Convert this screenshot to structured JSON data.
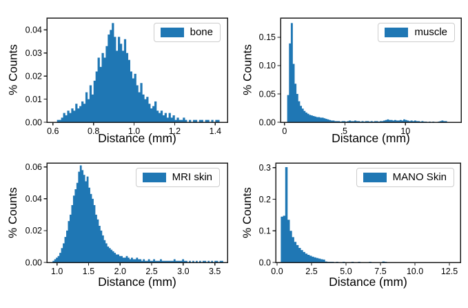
{
  "figure": {
    "background": "#ffffff",
    "bar_color": "#1f77b4",
    "spine_color": "#1a1a1a",
    "text_color": "#000000",
    "legend_border_color": "#cccccc"
  },
  "chart_data": [
    {
      "type": "bar",
      "legend": "bone",
      "xlabel": "Distance (mm)",
      "ylabel": "% Counts",
      "legend_position": "upper right",
      "grid": false,
      "xlim": [
        0.57,
        1.46
      ],
      "ylim": [
        0,
        0.0452
      ],
      "xticks": [
        0.6,
        0.8,
        1.0,
        1.2,
        1.4
      ],
      "xtick_labels": [
        "0.6",
        "0.8",
        "1.0",
        "1.2",
        "1.4"
      ],
      "yticks": [
        0,
        0.01,
        0.02,
        0.03,
        0.04
      ],
      "ytick_labels": [
        "0.00",
        "0.01",
        "0.02",
        "0.03",
        "0.04"
      ],
      "bin_start": 0.62,
      "bin_width": 0.01,
      "heights": [
        0.001,
        0.001,
        0.002,
        0.004,
        0.003,
        0.005,
        0.004,
        0.006,
        0.005,
        0.008,
        0.006,
        0.007,
        0.009,
        0.008,
        0.013,
        0.01,
        0.016,
        0.012,
        0.018,
        0.022,
        0.028,
        0.024,
        0.03,
        0.028,
        0.033,
        0.038,
        0.04,
        0.043,
        0.037,
        0.031,
        0.037,
        0.034,
        0.031,
        0.036,
        0.03,
        0.027,
        0.022,
        0.019,
        0.021,
        0.016,
        0.013,
        0.017,
        0.012,
        0.01,
        0.011,
        0.008,
        0.006,
        0.007,
        0.009,
        0.005,
        0.004,
        0.005,
        0.003,
        0.004,
        0.002,
        0.004,
        0.002,
        0.003,
        0.001,
        0.002,
        0.001,
        0.001,
        0.002,
        0.001,
        0,
        0.001,
        0,
        0.001,
        0.001,
        0,
        0.001,
        0.001,
        0,
        0.001,
        0.001,
        0,
        0.001,
        0,
        0.001,
        0.001
      ]
    },
    {
      "type": "bar",
      "legend": "muscle",
      "xlabel": "Distance (mm)",
      "ylabel": "% Counts",
      "legend_position": "upper right",
      "grid": false,
      "xlim": [
        -0.33,
        14.6
      ],
      "ylim": [
        0,
        0.184
      ],
      "xticks": [
        0,
        5,
        10
      ],
      "xtick_labels": [
        "0",
        "5",
        "10"
      ],
      "yticks": [
        0,
        0.05,
        0.1,
        0.15
      ],
      "ytick_labels": [
        "0.00",
        "0.05",
        "0.10",
        "0.15"
      ],
      "bin_start": 0.22,
      "bin_width": 0.15,
      "heights": [
        0.048,
        0.139,
        0.175,
        0.103,
        0.068,
        0.05,
        0.037,
        0.029,
        0.024,
        0.02,
        0.017,
        0.015,
        0.013,
        0.012,
        0.011,
        0.01,
        0.009,
        0.009,
        0.008,
        0.008,
        0.007,
        0.006,
        0.005,
        0.004,
        0.003,
        0.003,
        0.002,
        0.002,
        0.002,
        0.001,
        0.002,
        0.002,
        0.001,
        0.002,
        0.003,
        0.002,
        0.002,
        0.003,
        0.002,
        0.002,
        0.001,
        0.002,
        0.001,
        0.002,
        0.002,
        0.001,
        0.002,
        0.001,
        0.002,
        0.002,
        0.001,
        0.002,
        0.002,
        0.003,
        0.004,
        0.005,
        0.004,
        0.004,
        0.003,
        0.004,
        0.003,
        0.003,
        0.004,
        0.003,
        0.005,
        0.004,
        0.003,
        0.002,
        0.003,
        0.002,
        0.003,
        0.002,
        0.002,
        0.001,
        0.002,
        0.001,
        0.001,
        0,
        0.001,
        0,
        0.001,
        0,
        0,
        0.001,
        0.002,
        0.003,
        0.002,
        0.002
      ]
    },
    {
      "type": "bar",
      "legend": "MRI skin",
      "xlabel": "Distance (mm)",
      "ylabel": "% Counts",
      "legend_position": "upper right",
      "grid": false,
      "xlim": [
        0.84,
        3.7
      ],
      "ylim": [
        0,
        0.0625
      ],
      "xticks": [
        1.0,
        1.5,
        2.0,
        2.5,
        3.0,
        3.5
      ],
      "xtick_labels": [
        "1.0",
        "1.5",
        "2.0",
        "2.5",
        "3.0",
        "3.5"
      ],
      "yticks": [
        0,
        0.02,
        0.04,
        0.06
      ],
      "ytick_labels": [
        "0.00",
        "0.02",
        "0.04",
        "0.06"
      ],
      "bin_start": 0.93,
      "bin_width": 0.027,
      "heights": [
        0.001,
        0.002,
        0.003,
        0.004,
        0.006,
        0.009,
        0.012,
        0.016,
        0.02,
        0.026,
        0.03,
        0.036,
        0.042,
        0.046,
        0.05,
        0.057,
        0.061,
        0.058,
        0.055,
        0.051,
        0.054,
        0.047,
        0.043,
        0.04,
        0.036,
        0.03,
        0.027,
        0.023,
        0.02,
        0.017,
        0.014,
        0.012,
        0.01,
        0.009,
        0.008,
        0.007,
        0.006,
        0.005,
        0.005,
        0.004,
        0.004,
        0.003,
        0.003,
        0.004,
        0.003,
        0.002,
        0.003,
        0.002,
        0.002,
        0.003,
        0.002,
        0.002,
        0.001,
        0.002,
        0.001,
        0.001,
        0.002,
        0.001,
        0.001,
        0.002,
        0.001,
        0.001,
        0.001,
        0.002,
        0.001,
        0.001,
        0.001,
        0.001,
        0.001,
        0.001,
        0.001,
        0.002,
        0.001,
        0.001,
        0.001,
        0.001,
        0.002,
        0.001,
        0.001,
        0,
        0.001,
        0,
        0.001,
        0,
        0.001,
        0,
        0.001,
        0,
        0.001,
        0.001,
        0,
        0.001,
        0,
        0.001,
        0,
        0.001,
        0.001,
        0,
        0.001,
        0.001
      ]
    },
    {
      "type": "bar",
      "legend": "MANO Skin",
      "xlabel": "Distance (mm)",
      "ylabel": "% Counts",
      "legend_position": "upper right",
      "grid": false,
      "xlim": [
        -0.1,
        13.3
      ],
      "ylim": [
        0,
        0.315
      ],
      "xticks": [
        0.0,
        2.5,
        5.0,
        7.5,
        10.0,
        12.5
      ],
      "xtick_labels": [
        "0.0",
        "2.5",
        "5.0",
        "7.5",
        "10.0",
        "12.5"
      ],
      "yticks": [
        0,
        0.1,
        0.2,
        0.3
      ],
      "ytick_labels": [
        "0.0",
        "0.1",
        "0.2",
        "0.3"
      ],
      "bin_start": 0.27,
      "bin_width": 0.16,
      "heights": [
        0.145,
        0.148,
        0.302,
        0.135,
        0.1,
        0.08,
        0.065,
        0.055,
        0.046,
        0.039,
        0.033,
        0.028,
        0.024,
        0.021,
        0.018,
        0.016,
        0.014,
        0.012,
        0.01,
        0.009,
        0.003,
        0.002,
        0.002,
        0.002,
        0.001,
        0.002,
        0.001,
        0.001,
        0.002,
        0.001,
        0.001,
        0,
        0.002,
        0,
        0.001,
        0.002,
        0,
        0.001,
        0,
        0.001,
        0.002,
        0,
        0.001,
        0,
        0.001,
        0,
        0.003,
        0.002,
        0,
        0.001
      ]
    }
  ]
}
